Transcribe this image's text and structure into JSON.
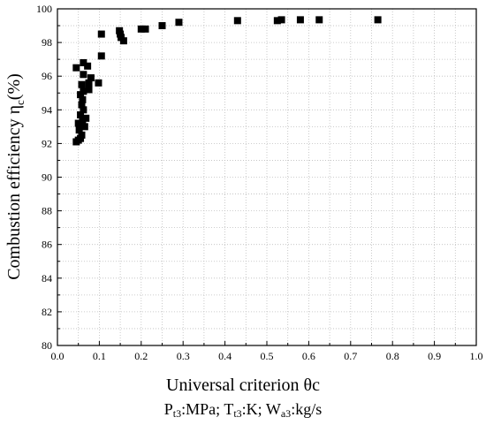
{
  "chart_data": {
    "type": "scatter",
    "xlabel": "Universal criterion θc",
    "ylabel_main": "Combustion efficiency η",
    "ylabel_sub": "c",
    "ylabel_tail": "(%)",
    "xlim": [
      0.0,
      1.0
    ],
    "ylim": [
      80,
      100
    ],
    "x_ticks": [
      0.0,
      0.1,
      0.2,
      0.3,
      0.4,
      0.5,
      0.6,
      0.7,
      0.8,
      0.9,
      1.0
    ],
    "y_ticks": [
      80,
      82,
      84,
      86,
      88,
      90,
      92,
      94,
      96,
      98,
      100
    ],
    "grid": true,
    "marker": "square",
    "marker_color": "#000000",
    "points": [
      {
        "x": 0.045,
        "y": 92.1
      },
      {
        "x": 0.05,
        "y": 92.2
      },
      {
        "x": 0.055,
        "y": 92.3
      },
      {
        "x": 0.058,
        "y": 92.5
      },
      {
        "x": 0.052,
        "y": 92.8
      },
      {
        "x": 0.065,
        "y": 93.0
      },
      {
        "x": 0.06,
        "y": 93.3
      },
      {
        "x": 0.05,
        "y": 93.2
      },
      {
        "x": 0.068,
        "y": 93.5
      },
      {
        "x": 0.055,
        "y": 93.7
      },
      {
        "x": 0.062,
        "y": 94.0
      },
      {
        "x": 0.058,
        "y": 94.3
      },
      {
        "x": 0.06,
        "y": 94.6
      },
      {
        "x": 0.055,
        "y": 94.9
      },
      {
        "x": 0.062,
        "y": 95.1
      },
      {
        "x": 0.075,
        "y": 95.2
      },
      {
        "x": 0.058,
        "y": 95.5
      },
      {
        "x": 0.075,
        "y": 95.6
      },
      {
        "x": 0.098,
        "y": 95.6
      },
      {
        "x": 0.08,
        "y": 95.9
      },
      {
        "x": 0.062,
        "y": 96.1
      },
      {
        "x": 0.045,
        "y": 96.5
      },
      {
        "x": 0.072,
        "y": 96.6
      },
      {
        "x": 0.062,
        "y": 96.8
      },
      {
        "x": 0.105,
        "y": 97.2
      },
      {
        "x": 0.158,
        "y": 98.1
      },
      {
        "x": 0.152,
        "y": 98.3
      },
      {
        "x": 0.15,
        "y": 98.5
      },
      {
        "x": 0.105,
        "y": 98.5
      },
      {
        "x": 0.148,
        "y": 98.7
      },
      {
        "x": 0.2,
        "y": 98.8
      },
      {
        "x": 0.21,
        "y": 98.8
      },
      {
        "x": 0.25,
        "y": 99.0
      },
      {
        "x": 0.29,
        "y": 99.2
      },
      {
        "x": 0.43,
        "y": 99.3
      },
      {
        "x": 0.525,
        "y": 99.3
      },
      {
        "x": 0.535,
        "y": 99.35
      },
      {
        "x": 0.58,
        "y": 99.35
      },
      {
        "x": 0.625,
        "y": 99.35
      },
      {
        "x": 0.765,
        "y": 99.35
      }
    ]
  },
  "footnote": {
    "p": "P",
    "p_sub": "t3",
    "p_unit": ":MPa; ",
    "t": "T",
    "t_sub": "t3",
    "t_unit": ":K; ",
    "w": "W",
    "w_sub": "a3",
    "w_unit": ":kg/s"
  }
}
